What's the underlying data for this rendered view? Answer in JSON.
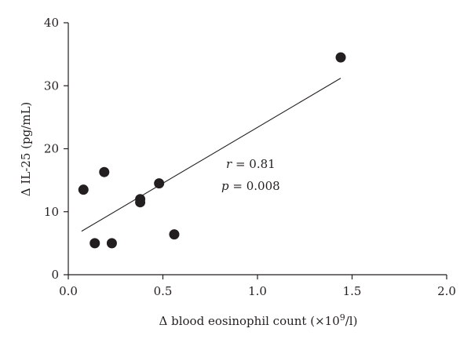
{
  "chart_data": {
    "type": "scatter",
    "xlabel_prefix": "Δ blood eosinophil count (×10",
    "xlabel_sup": "9",
    "xlabel_suffix": "/l)",
    "ylabel": "Δ IL-25 (pg/mL)",
    "xlim": [
      0.0,
      2.0
    ],
    "ylim": [
      0,
      40
    ],
    "xticks": [
      "0.0",
      "0.5",
      "1.0",
      "1.5",
      "2.0"
    ],
    "yticks": [
      "0",
      "10",
      "20",
      "30",
      "40"
    ],
    "points": [
      {
        "x": 0.08,
        "y": 13.5
      },
      {
        "x": 0.14,
        "y": 5.0
      },
      {
        "x": 0.19,
        "y": 16.3
      },
      {
        "x": 0.23,
        "y": 5.0
      },
      {
        "x": 0.38,
        "y": 12.0
      },
      {
        "x": 0.38,
        "y": 11.5
      },
      {
        "x": 0.48,
        "y": 14.5
      },
      {
        "x": 0.56,
        "y": 6.4
      },
      {
        "x": 1.44,
        "y": 34.5
      }
    ],
    "regression_line": {
      "x": [
        0.07,
        1.44
      ],
      "y": [
        6.9,
        31.2
      ]
    },
    "annotations": {
      "r_symbol": "r",
      "r_value": " = 0.81",
      "p_symbol": "p",
      "p_value": " = 0.008"
    },
    "grid": false,
    "colors": {
      "points": "#231f20",
      "axes": "#231f20"
    }
  }
}
